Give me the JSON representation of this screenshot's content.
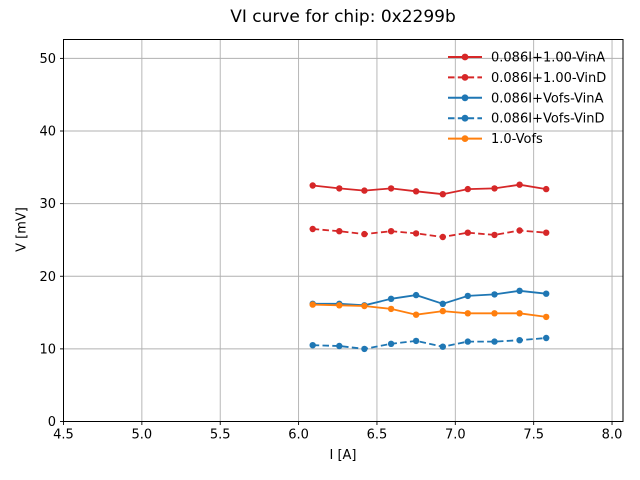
{
  "chart_data": {
    "type": "line",
    "title": "VI curve for chip: 0x2299b",
    "xlabel": "I [A]",
    "ylabel": "V [mV]",
    "xlim": [
      4.5,
      8.07
    ],
    "ylim": [
      0,
      52.6
    ],
    "xticks": [
      4.5,
      5.0,
      5.5,
      6.0,
      6.5,
      7.0,
      7.5,
      8.0
    ],
    "xtick_labels": [
      "4.5",
      "5.0",
      "5.5",
      "6.0",
      "6.5",
      "7.0",
      "7.5",
      "8.0"
    ],
    "yticks": [
      0,
      10,
      20,
      30,
      40,
      50
    ],
    "ytick_labels": [
      "0",
      "10",
      "20",
      "30",
      "40",
      "50"
    ],
    "grid": true,
    "grid_color": "#b0b0b0",
    "legend_position": "upper right",
    "x": [
      6.09,
      6.26,
      6.42,
      6.59,
      6.75,
      6.92,
      7.08,
      7.25,
      7.41,
      7.58
    ],
    "series": [
      {
        "name": "0.086I+1.00-VinA",
        "color": "#d62728",
        "linestyle": "solid",
        "marker": "circle",
        "values": [
          32.5,
          32.1,
          31.8,
          32.1,
          31.7,
          31.3,
          32.0,
          32.1,
          32.6,
          32.0
        ]
      },
      {
        "name": "0.086I+1.00-VinD",
        "color": "#d62728",
        "linestyle": "dashed",
        "marker": "circle",
        "values": [
          26.5,
          26.2,
          25.8,
          26.2,
          25.9,
          25.4,
          26.0,
          25.7,
          26.3,
          26.0
        ]
      },
      {
        "name": "0.086I+Vofs-VinA",
        "color": "#1f77b4",
        "linestyle": "solid",
        "marker": "circle",
        "values": [
          16.2,
          16.2,
          16.0,
          16.9,
          17.4,
          16.2,
          17.3,
          17.5,
          18.0,
          17.6
        ]
      },
      {
        "name": "0.086I+Vofs-VinD",
        "color": "#1f77b4",
        "linestyle": "dashed",
        "marker": "circle",
        "values": [
          10.5,
          10.4,
          10.0,
          10.7,
          11.1,
          10.3,
          11.0,
          11.0,
          11.2,
          11.5
        ]
      },
      {
        "name": "1.0-Vofs",
        "color": "#ff7f0e",
        "linestyle": "solid",
        "marker": "circle",
        "values": [
          16.1,
          16.0,
          15.9,
          15.5,
          14.7,
          15.2,
          14.9,
          14.9,
          14.9,
          14.4
        ]
      }
    ]
  }
}
